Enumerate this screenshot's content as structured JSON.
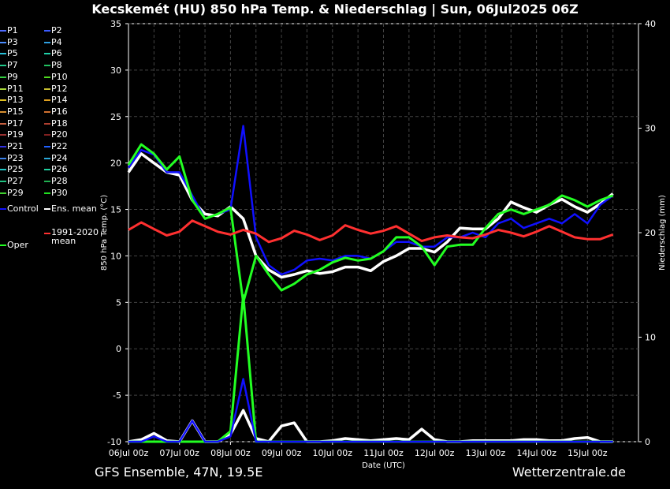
{
  "header": {
    "title": "Kecskemét  (HU)  850 hPa Temp. & Niederschlag | Sun, 06Jul2025 06Z"
  },
  "footer": {
    "left": "GFS Ensemble, 47N, 19.5E",
    "right": "Wetterzentrale.de"
  },
  "legend": [
    {
      "label": "P1",
      "color": "#4f6bff"
    },
    {
      "label": "P2",
      "color": "#3b5bff"
    },
    {
      "label": "P3",
      "color": "#4a8cff"
    },
    {
      "label": "P4",
      "color": "#2f9fe0"
    },
    {
      "label": "P5",
      "color": "#27c0d8"
    },
    {
      "label": "P6",
      "color": "#1fd0a8"
    },
    {
      "label": "P7",
      "color": "#1fc98a"
    },
    {
      "label": "P8",
      "color": "#22c060"
    },
    {
      "label": "P9",
      "color": "#33d040"
    },
    {
      "label": "P10",
      "color": "#4fd81f"
    },
    {
      "label": "P11",
      "color": "#a8d838"
    },
    {
      "label": "P12",
      "color": "#c8c030"
    },
    {
      "label": "P13",
      "color": "#e0c020"
    },
    {
      "label": "P14",
      "color": "#e0a020"
    },
    {
      "label": "P15",
      "color": "#d89030"
    },
    {
      "label": "P16",
      "color": "#d07030"
    },
    {
      "label": "P17",
      "color": "#c86040"
    },
    {
      "label": "P18",
      "color": "#b04030"
    },
    {
      "label": "P19",
      "color": "#9a3030"
    },
    {
      "label": "P20",
      "color": "#802020"
    },
    {
      "label": "P21",
      "color": "#3030e0"
    },
    {
      "label": "P22",
      "color": "#2060ff"
    },
    {
      "label": "P23",
      "color": "#3a80e8"
    },
    {
      "label": "P24",
      "color": "#2aa8d8"
    },
    {
      "label": "P25",
      "color": "#20c8c8"
    },
    {
      "label": "P26",
      "color": "#20d0a0"
    },
    {
      "label": "P27",
      "color": "#20c080"
    },
    {
      "label": "P28",
      "color": "#20b050"
    },
    {
      "label": "P29",
      "color": "#40d030"
    },
    {
      "label": "P30",
      "color": "#20e020"
    },
    {
      "label": "Control",
      "color": "#1010ff"
    },
    {
      "label": "Ens. mean",
      "color": "#ffffff"
    },
    {
      "label": "Oper",
      "color": "#22ff22"
    },
    {
      "label": "1991-2020 mean",
      "color": "#ff3030"
    }
  ],
  "chart_data": {
    "type": "line",
    "xlabel": "Date (UTC)",
    "ylabel": "850 hPa Temp. (°C)",
    "ylabel_right": "Niederschlag (mm)",
    "ylim": [
      -10,
      35
    ],
    "ylim_right": [
      0,
      40
    ],
    "yticks": [
      -10,
      -5,
      0,
      5,
      10,
      15,
      20,
      25,
      30,
      35
    ],
    "yticks_right": [
      0,
      10,
      20,
      30,
      40
    ],
    "x_ticks": [
      "06Jul 00z",
      "07Jul 00z",
      "08Jul 00z",
      "09Jul 00z",
      "10Jul 00z",
      "11Jul 00z",
      "12Jul 00z",
      "13Jul 00z",
      "14Jul 00z",
      "15Jul 00z"
    ],
    "x_range_hours": [
      0,
      240
    ],
    "grid": true,
    "series": [
      {
        "name": "Ens. mean",
        "color": "#ffffff",
        "axis": "left",
        "step_hours": 6,
        "values": [
          19,
          21,
          20,
          19,
          18.7,
          16,
          14.5,
          14.3,
          15.3,
          14,
          10,
          8.5,
          7.7,
          8,
          8.4,
          8.1,
          8.3,
          8.8,
          8.8,
          8.4,
          9.4,
          10,
          10.8,
          10.8,
          10.4,
          11.5,
          13,
          12.9,
          12.9,
          14,
          15.8,
          15.2,
          14.7,
          15.5,
          16.1,
          15.3,
          14.7,
          15.6,
          16.7
        ]
      },
      {
        "name": "Control",
        "color": "#1010ff",
        "axis": "left",
        "step_hours": 6,
        "values": [
          19.5,
          21.4,
          20.9,
          19,
          19,
          16.5,
          14,
          14.5,
          15,
          24,
          12,
          9,
          8,
          8.5,
          9.5,
          9.7,
          9.5,
          10,
          10,
          9.7,
          10.5,
          11.5,
          11.5,
          11,
          11,
          12,
          12,
          12.5,
          12,
          13.5,
          14,
          13,
          13.5,
          14,
          13.5,
          14.5,
          13.5,
          15.5,
          16.5
        ]
      },
      {
        "name": "Oper",
        "color": "#22ff22",
        "axis": "left",
        "step_hours": 6,
        "values": [
          19.8,
          22,
          21,
          19.3,
          20.7,
          16,
          14,
          14.5,
          15.2,
          5,
          10,
          8,
          6.3,
          7,
          8,
          8.5,
          9.3,
          9.8,
          9.5,
          9.7,
          10.5,
          12,
          12,
          11,
          9,
          11,
          11.2,
          11.2,
          13,
          14.5,
          15,
          14.5,
          15,
          15.5,
          16.5,
          16,
          15.3,
          16,
          16.5
        ]
      },
      {
        "name": "1991-2020 mean",
        "color": "#ff3030",
        "axis": "left",
        "step_hours": 6,
        "values": [
          12.8,
          13.6,
          12.9,
          12.2,
          12.6,
          13.8,
          13.2,
          12.6,
          12.3,
          12.8,
          12.4,
          11.5,
          11.9,
          12.7,
          12.3,
          11.7,
          12.2,
          13.3,
          12.8,
          12.4,
          12.7,
          13.2,
          12.4,
          11.6,
          12.0,
          12.2,
          12.0,
          11.9,
          12.3,
          12.8,
          12.5,
          12.1,
          12.6,
          13.2,
          12.6,
          12.0,
          11.8,
          11.8,
          12.3
        ]
      },
      {
        "name": "Ens. mean",
        "color": "#ffffff",
        "axis": "right",
        "step_hours": 6,
        "values": [
          0,
          0.2,
          0.8,
          0.1,
          0,
          2,
          0,
          0,
          0.7,
          3,
          0.3,
          0,
          1.5,
          1.8,
          0,
          0,
          0.1,
          0.3,
          0.2,
          0.1,
          0.2,
          0.3,
          0.2,
          1.2,
          0.2,
          0,
          0,
          0.1,
          0.1,
          0.1,
          0.1,
          0.2,
          0.2,
          0.1,
          0.1,
          0.3,
          0.4,
          0,
          0
        ]
      },
      {
        "name": "Oper",
        "color": "#22ff22",
        "axis": "right",
        "step_hours": 6,
        "values": [
          0,
          0,
          0,
          0,
          0,
          0,
          0,
          0,
          1,
          14,
          0,
          0,
          0,
          0,
          0,
          0,
          0,
          0,
          0,
          0,
          0,
          0,
          0,
          0,
          0,
          0,
          0,
          0,
          0,
          0,
          0,
          0,
          0,
          0,
          0,
          0,
          0,
          0,
          0
        ]
      },
      {
        "name": "Control",
        "color": "#1010ff",
        "axis": "right",
        "step_hours": 6,
        "values": [
          0,
          0,
          0.5,
          0,
          0,
          2,
          0,
          0,
          0.5,
          6,
          0,
          0,
          0,
          0,
          0,
          0,
          0,
          0,
          0,
          0,
          0,
          0,
          0,
          0,
          0,
          0,
          0,
          0,
          0,
          0,
          0,
          0,
          0,
          0,
          0,
          0,
          0,
          0,
          0
        ]
      }
    ]
  }
}
